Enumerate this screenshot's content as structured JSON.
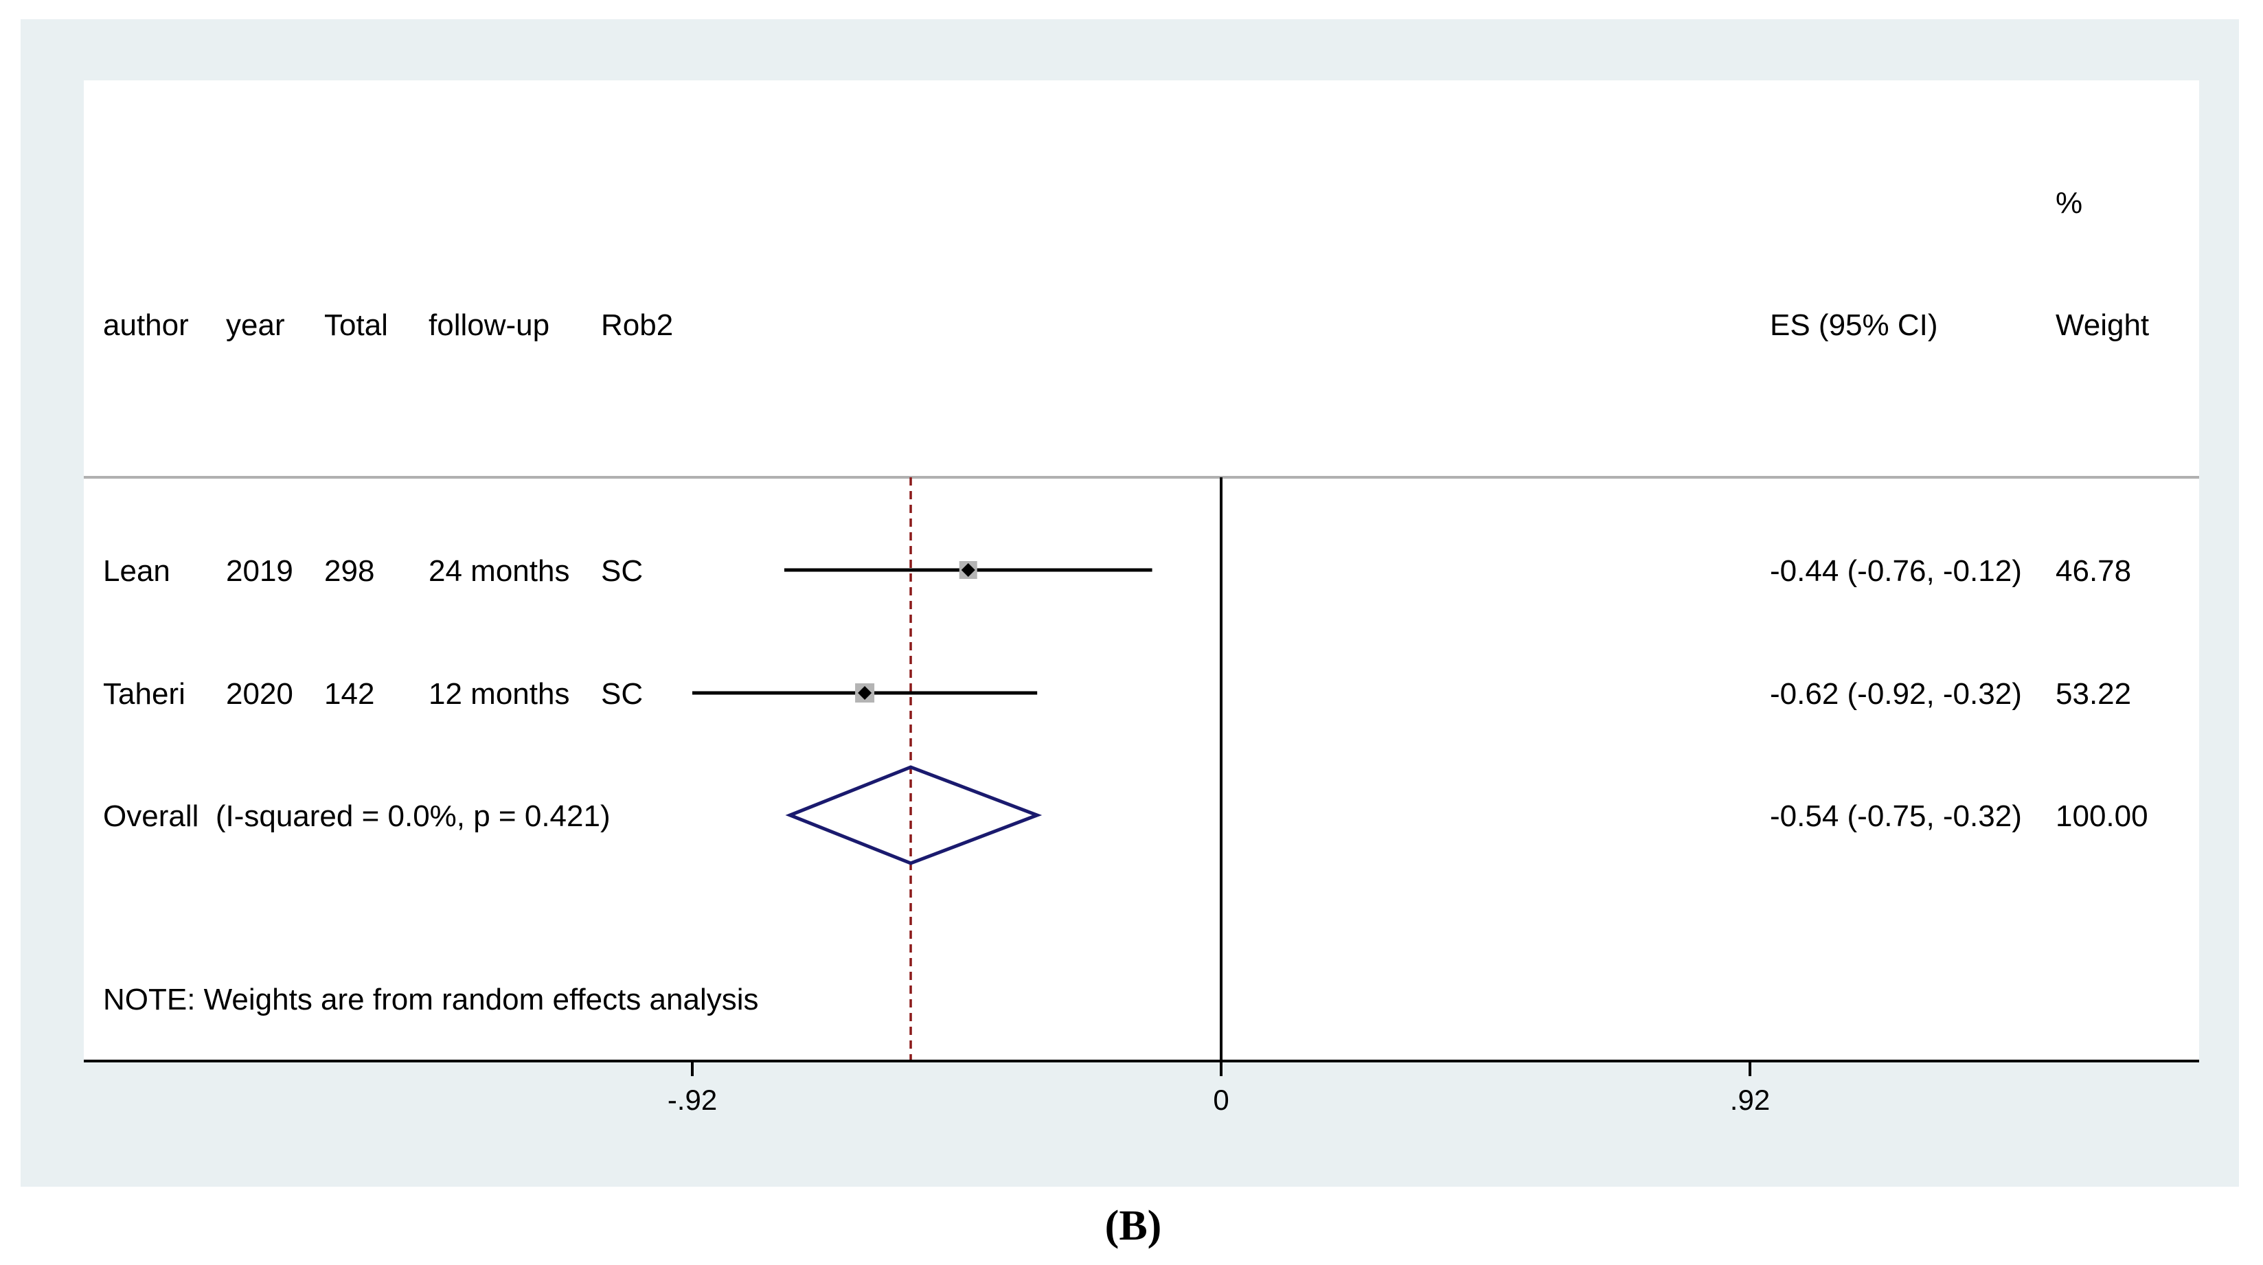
{
  "panel_label": "(B)",
  "columns": {
    "author": "author",
    "year": "year",
    "total": "Total",
    "followup": "follow-up",
    "rob2": "Rob2",
    "es": "ES (95% CI)",
    "weight_pct": "%",
    "weight": "Weight"
  },
  "note": "NOTE: Weights are from random effects analysis",
  "colors": {
    "background_frame": "#e9f0f2",
    "plot_background": "#ffffff",
    "study_line": "#000000",
    "weight_box": "#b4b4b4",
    "diamond": "#1a1a6e",
    "overall_line": "#8b1a1a",
    "separator": "#b0b0b0"
  },
  "chart_data": {
    "type": "forest",
    "x_ticks": [
      -0.92,
      0,
      0.92
    ],
    "x_tick_labels": [
      "-.92",
      "0",
      ".92"
    ],
    "null_line": 0,
    "overall_line": -0.54,
    "studies": [
      {
        "author": "Lean",
        "year": "2019",
        "total": "298",
        "followup": "24 months",
        "rob2": "SC",
        "es": -0.44,
        "lo": -0.76,
        "hi": -0.12,
        "es_text": "-0.44 (-0.76, -0.12)",
        "weight": "46.78"
      },
      {
        "author": "Taheri",
        "year": "2020",
        "total": "142",
        "followup": "12 months",
        "rob2": "SC",
        "es": -0.62,
        "lo": -0.92,
        "hi": -0.32,
        "es_text": "-0.62 (-0.92, -0.32)",
        "weight": "53.22"
      }
    ],
    "overall": {
      "label": "Overall  (I-squared = 0.0%, p = 0.421)",
      "es": -0.54,
      "lo": -0.75,
      "hi": -0.32,
      "es_text": "-0.54 (-0.75, -0.32)",
      "weight": "100.00"
    }
  }
}
